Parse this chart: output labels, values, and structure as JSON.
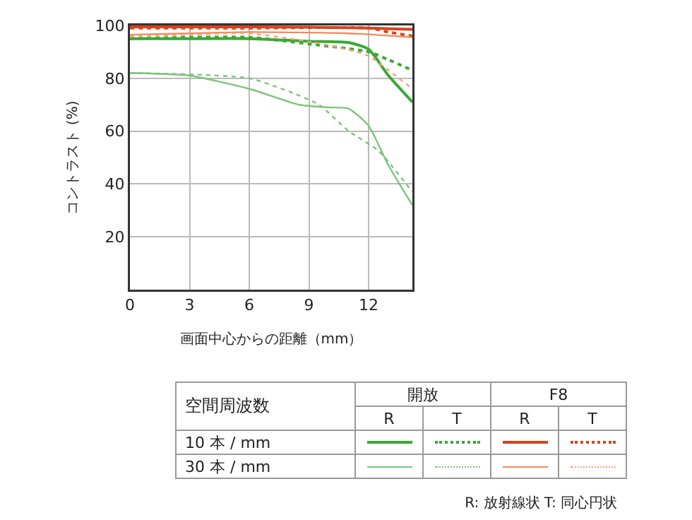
{
  "chart_data": {
    "type": "line",
    "xlabel": "画面中心からの距離（mm）",
    "ylabel": "コントラスト (%)",
    "xlim": [
      0,
      14.2
    ],
    "xticks": [
      0,
      3,
      6,
      9,
      12
    ],
    "ylim": [
      0,
      100
    ],
    "yticks": [
      20,
      40,
      60,
      80,
      100
    ],
    "grid": true,
    "series": [
      {
        "color": "#3aa935",
        "line_style": "solid",
        "x": [
          0,
          3,
          6,
          9,
          11,
          12,
          13,
          14.2
        ],
        "values": [
          95,
          95,
          95,
          94,
          93.5,
          91,
          81,
          71
        ]
      },
      {
        "color": "#3aa935",
        "line_style": "dotted",
        "x": [
          0,
          3,
          6,
          9,
          12,
          13,
          14.2
        ],
        "values": [
          95,
          95.5,
          95.5,
          93,
          90,
          87,
          83
        ]
      },
      {
        "color": "#d9421c",
        "line_style": "solid",
        "x": [
          0,
          6,
          12,
          14.2
        ],
        "values": [
          99.5,
          99.5,
          99,
          98.5
        ]
      },
      {
        "color": "#d9421c",
        "line_style": "dotted",
        "x": [
          0,
          6,
          12,
          13,
          14.2
        ],
        "values": [
          99,
          99,
          99,
          97.5,
          96
        ]
      },
      {
        "color": "#7cc47a",
        "line_style": "solid",
        "x": [
          0,
          3,
          6,
          8.5,
          10,
          11,
          12,
          13,
          14.2
        ],
        "values": [
          82,
          81,
          76,
          70,
          69,
          68.5,
          62,
          47,
          32
        ]
      },
      {
        "color": "#7cc47a",
        "line_style": "dotted",
        "x": [
          0,
          3,
          6,
          8,
          9.5,
          11,
          12.5,
          14.2
        ],
        "values": [
          82,
          81.5,
          80,
          75,
          70,
          60,
          52.5,
          37
        ]
      },
      {
        "color": "#f08a5a",
        "line_style": "solid",
        "x": [
          0,
          3,
          6,
          11,
          14.2
        ],
        "values": [
          96.5,
          97,
          97.5,
          97,
          95.5
        ]
      },
      {
        "color": "#f5a27a",
        "line_style": "dotted",
        "x": [
          0,
          3,
          6,
          10,
          12,
          13,
          14.2
        ],
        "values": [
          96,
          96.5,
          97,
          92.5,
          88.5,
          83,
          76
        ]
      }
    ],
    "annotations": [
      "空間周波数",
      "開放",
      "F8",
      "R",
      "T",
      "R",
      "T",
      "10 本 / mm",
      "30 本 / mm",
      "R: 放射線状  T: 同心円状"
    ]
  }
}
